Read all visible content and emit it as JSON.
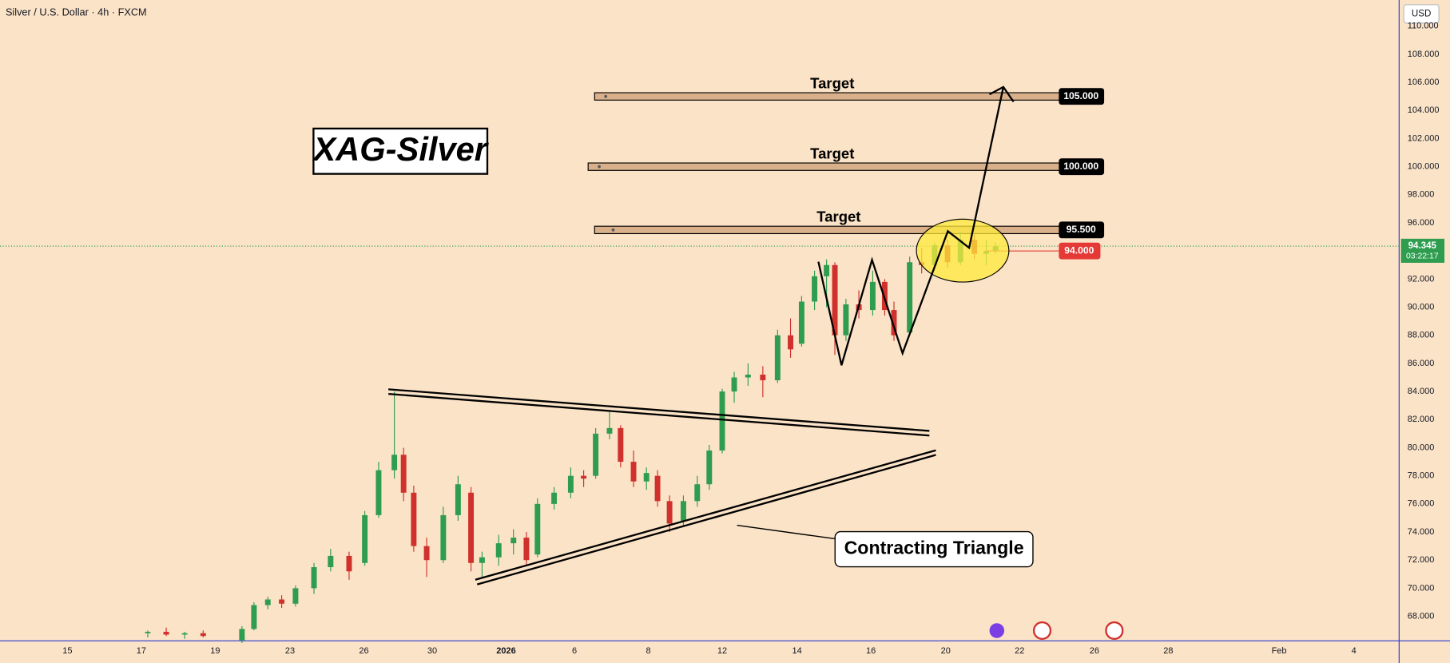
{
  "header": {
    "symbol": "Silver / U.S. Dollar · 4h · FXCM",
    "currency": "USD"
  },
  "chart_data": {
    "type": "candlestick",
    "title": "XAG-Silver",
    "annotation": "Contracting Triangle",
    "up_color": "#2e9d4f",
    "down_color": "#d0312d",
    "x": [
      2.175,
      2.675,
      3.175,
      3.675,
      4.725,
      5.05,
      5.425,
      5.8,
      6.175,
      6.675,
      7.125,
      7.625,
      8.05,
      8.425,
      8.85,
      9.1,
      9.375,
      9.725,
      10.175,
      10.575,
      10.925,
      11.225,
      11.675,
      12.075,
      12.425,
      12.725,
      13.175,
      13.625,
      13.975,
      14.3,
      14.675,
      14.975,
      15.325,
      15.675,
      15.975,
      16.3,
      16.675,
      17.05,
      17.375,
      17.725,
      18.05,
      18.425,
      18.825,
      19.225,
      19.575,
      19.875,
      20.225,
      20.55,
      20.775,
      21.075,
      21.425,
      21.8,
      22.125,
      22.375,
      22.8,
      23.125,
      23.475,
      23.825,
      24.175,
      24.55,
      24.875,
      25.125
    ],
    "open": [
      66.8,
      66.9,
      66.7,
      66.8,
      66.3,
      67.1,
      68.8,
      69.2,
      68.9,
      70.0,
      71.5,
      72.3,
      71.8,
      75.2,
      78.4,
      79.5,
      76.8,
      73.0,
      72.0,
      75.2,
      76.8,
      71.8,
      72.2,
      73.2,
      73.6,
      72.4,
      76.0,
      76.8,
      78.0,
      78.0,
      81.0,
      81.4,
      79.0,
      77.6,
      78.0,
      76.2,
      74.8,
      76.2,
      77.4,
      79.8,
      84.0,
      85.0,
      85.2,
      84.8,
      88.0,
      87.4,
      90.4,
      92.2,
      93.0,
      88.0,
      90.2,
      89.8,
      91.8,
      89.8,
      88.2,
      93.2,
      93.0,
      94.4,
      93.2,
      94.8,
      93.8,
      94.0
    ],
    "high": [
      67.0,
      67.2,
      66.9,
      67.0,
      67.3,
      69.0,
      69.4,
      69.5,
      70.2,
      71.8,
      72.8,
      72.6,
      75.5,
      79.0,
      84.0,
      80.0,
      77.3,
      73.6,
      75.8,
      78.0,
      77.2,
      72.6,
      73.8,
      74.2,
      74.0,
      76.4,
      77.2,
      78.6,
      78.4,
      81.4,
      82.6,
      81.6,
      79.8,
      78.6,
      78.4,
      76.6,
      76.6,
      78.0,
      80.2,
      84.2,
      85.4,
      86.0,
      85.8,
      88.4,
      89.2,
      90.8,
      92.6,
      93.4,
      93.2,
      90.6,
      91.2,
      92.6,
      92.0,
      90.4,
      93.6,
      94.2,
      94.6,
      94.8,
      95.4,
      95.2,
      94.8,
      94.6
    ],
    "low": [
      66.5,
      66.6,
      66.4,
      66.5,
      66.1,
      67.0,
      68.5,
      68.6,
      68.7,
      69.6,
      71.2,
      70.6,
      71.6,
      75.0,
      77.8,
      76.2,
      72.6,
      70.8,
      71.8,
      74.8,
      71.2,
      70.8,
      71.6,
      72.4,
      71.6,
      72.2,
      75.6,
      76.4,
      77.2,
      77.8,
      80.6,
      78.6,
      77.2,
      77.0,
      75.8,
      74.0,
      74.4,
      75.8,
      77.0,
      79.6,
      83.2,
      84.4,
      83.6,
      84.6,
      86.4,
      87.2,
      89.8,
      90.0,
      86.6,
      87.6,
      89.2,
      89.4,
      89.4,
      87.6,
      88.0,
      92.4,
      92.6,
      92.8,
      93.0,
      93.4,
      93.0,
      93.8
    ],
    "close": [
      66.9,
      66.7,
      66.8,
      66.6,
      67.1,
      68.8,
      69.2,
      68.9,
      70.0,
      71.5,
      72.3,
      71.2,
      75.2,
      78.4,
      79.5,
      76.8,
      73.0,
      72.0,
      75.2,
      77.4,
      71.8,
      72.2,
      73.2,
      73.6,
      72.0,
      76.0,
      76.8,
      78.0,
      77.8,
      81.0,
      81.4,
      79.0,
      77.6,
      78.2,
      76.2,
      74.6,
      76.2,
      77.4,
      79.8,
      84.0,
      85.0,
      85.2,
      84.8,
      88.0,
      87.0,
      90.4,
      92.2,
      93.0,
      88.0,
      90.2,
      89.8,
      91.8,
      89.8,
      88.0,
      93.2,
      93.0,
      94.4,
      93.2,
      94.8,
      93.8,
      94.0,
      94.345
    ],
    "xlim": [
      -1.825,
      36.05
    ],
    "xticks": [
      {
        "value": 0,
        "label": "15"
      },
      {
        "value": 2,
        "label": "17"
      },
      {
        "value": 4,
        "label": "19"
      },
      {
        "value": 6.025,
        "label": "23"
      },
      {
        "value": 8.025,
        "label": "26"
      },
      {
        "value": 9.875,
        "label": "30"
      },
      {
        "value": 11.875,
        "label": "2026"
      },
      {
        "value": 13.725,
        "label": "6"
      },
      {
        "value": 15.725,
        "label": "8"
      },
      {
        "value": 17.725,
        "label": "12"
      },
      {
        "value": 19.75,
        "label": "14"
      },
      {
        "value": 21.75,
        "label": "16"
      },
      {
        "value": 23.775,
        "label": "20"
      },
      {
        "value": 25.775,
        "label": "22"
      },
      {
        "value": 27.8,
        "label": "26"
      },
      {
        "value": 29.8,
        "label": "28"
      },
      {
        "value": 32.8,
        "label": "Feb"
      },
      {
        "value": 34.825,
        "label": "4"
      }
    ],
    "ylim": [
      66.26,
      111.86
    ],
    "yticks": [
      {
        "value": 68,
        "label": "68.000"
      },
      {
        "value": 70,
        "label": "70.000"
      },
      {
        "value": 72,
        "label": "72.000"
      },
      {
        "value": 74,
        "label": "74.000"
      },
      {
        "value": 76,
        "label": "76.000"
      },
      {
        "value": 78,
        "label": "78.000"
      },
      {
        "value": 80,
        "label": "80.000"
      },
      {
        "value": 82,
        "label": "82.000"
      },
      {
        "value": 84,
        "label": "84.000"
      },
      {
        "value": 86,
        "label": "86.000"
      },
      {
        "value": 88,
        "label": "88.000"
      },
      {
        "value": 90,
        "label": "90.000"
      },
      {
        "value": 92,
        "label": "92.000"
      },
      {
        "value": 94,
        "label": "94.000"
      },
      {
        "value": 96,
        "label": "96.000"
      },
      {
        "value": 98,
        "label": "98.000"
      },
      {
        "value": 100,
        "label": "100.000"
      },
      {
        "value": 102,
        "label": "102.000"
      },
      {
        "value": 104,
        "label": "104.000"
      },
      {
        "value": 106,
        "label": "106.000"
      },
      {
        "value": 108,
        "label": "108.000"
      },
      {
        "value": 110,
        "label": "110.000"
      }
    ],
    "targets": [
      {
        "value": 105,
        "label": "105.000",
        "text": "Target"
      },
      {
        "value": 100,
        "label": "100.000",
        "text": "Target"
      },
      {
        "value": 95.5,
        "label": "95.500",
        "text": "Target"
      }
    ],
    "entry": {
      "value": 94,
      "label": "94.000",
      "color": "#e53935"
    },
    "last_price": {
      "value": 94.345,
      "label": "94.345",
      "countdown": "03:22:17",
      "color": "#2e9d4f"
    }
  }
}
